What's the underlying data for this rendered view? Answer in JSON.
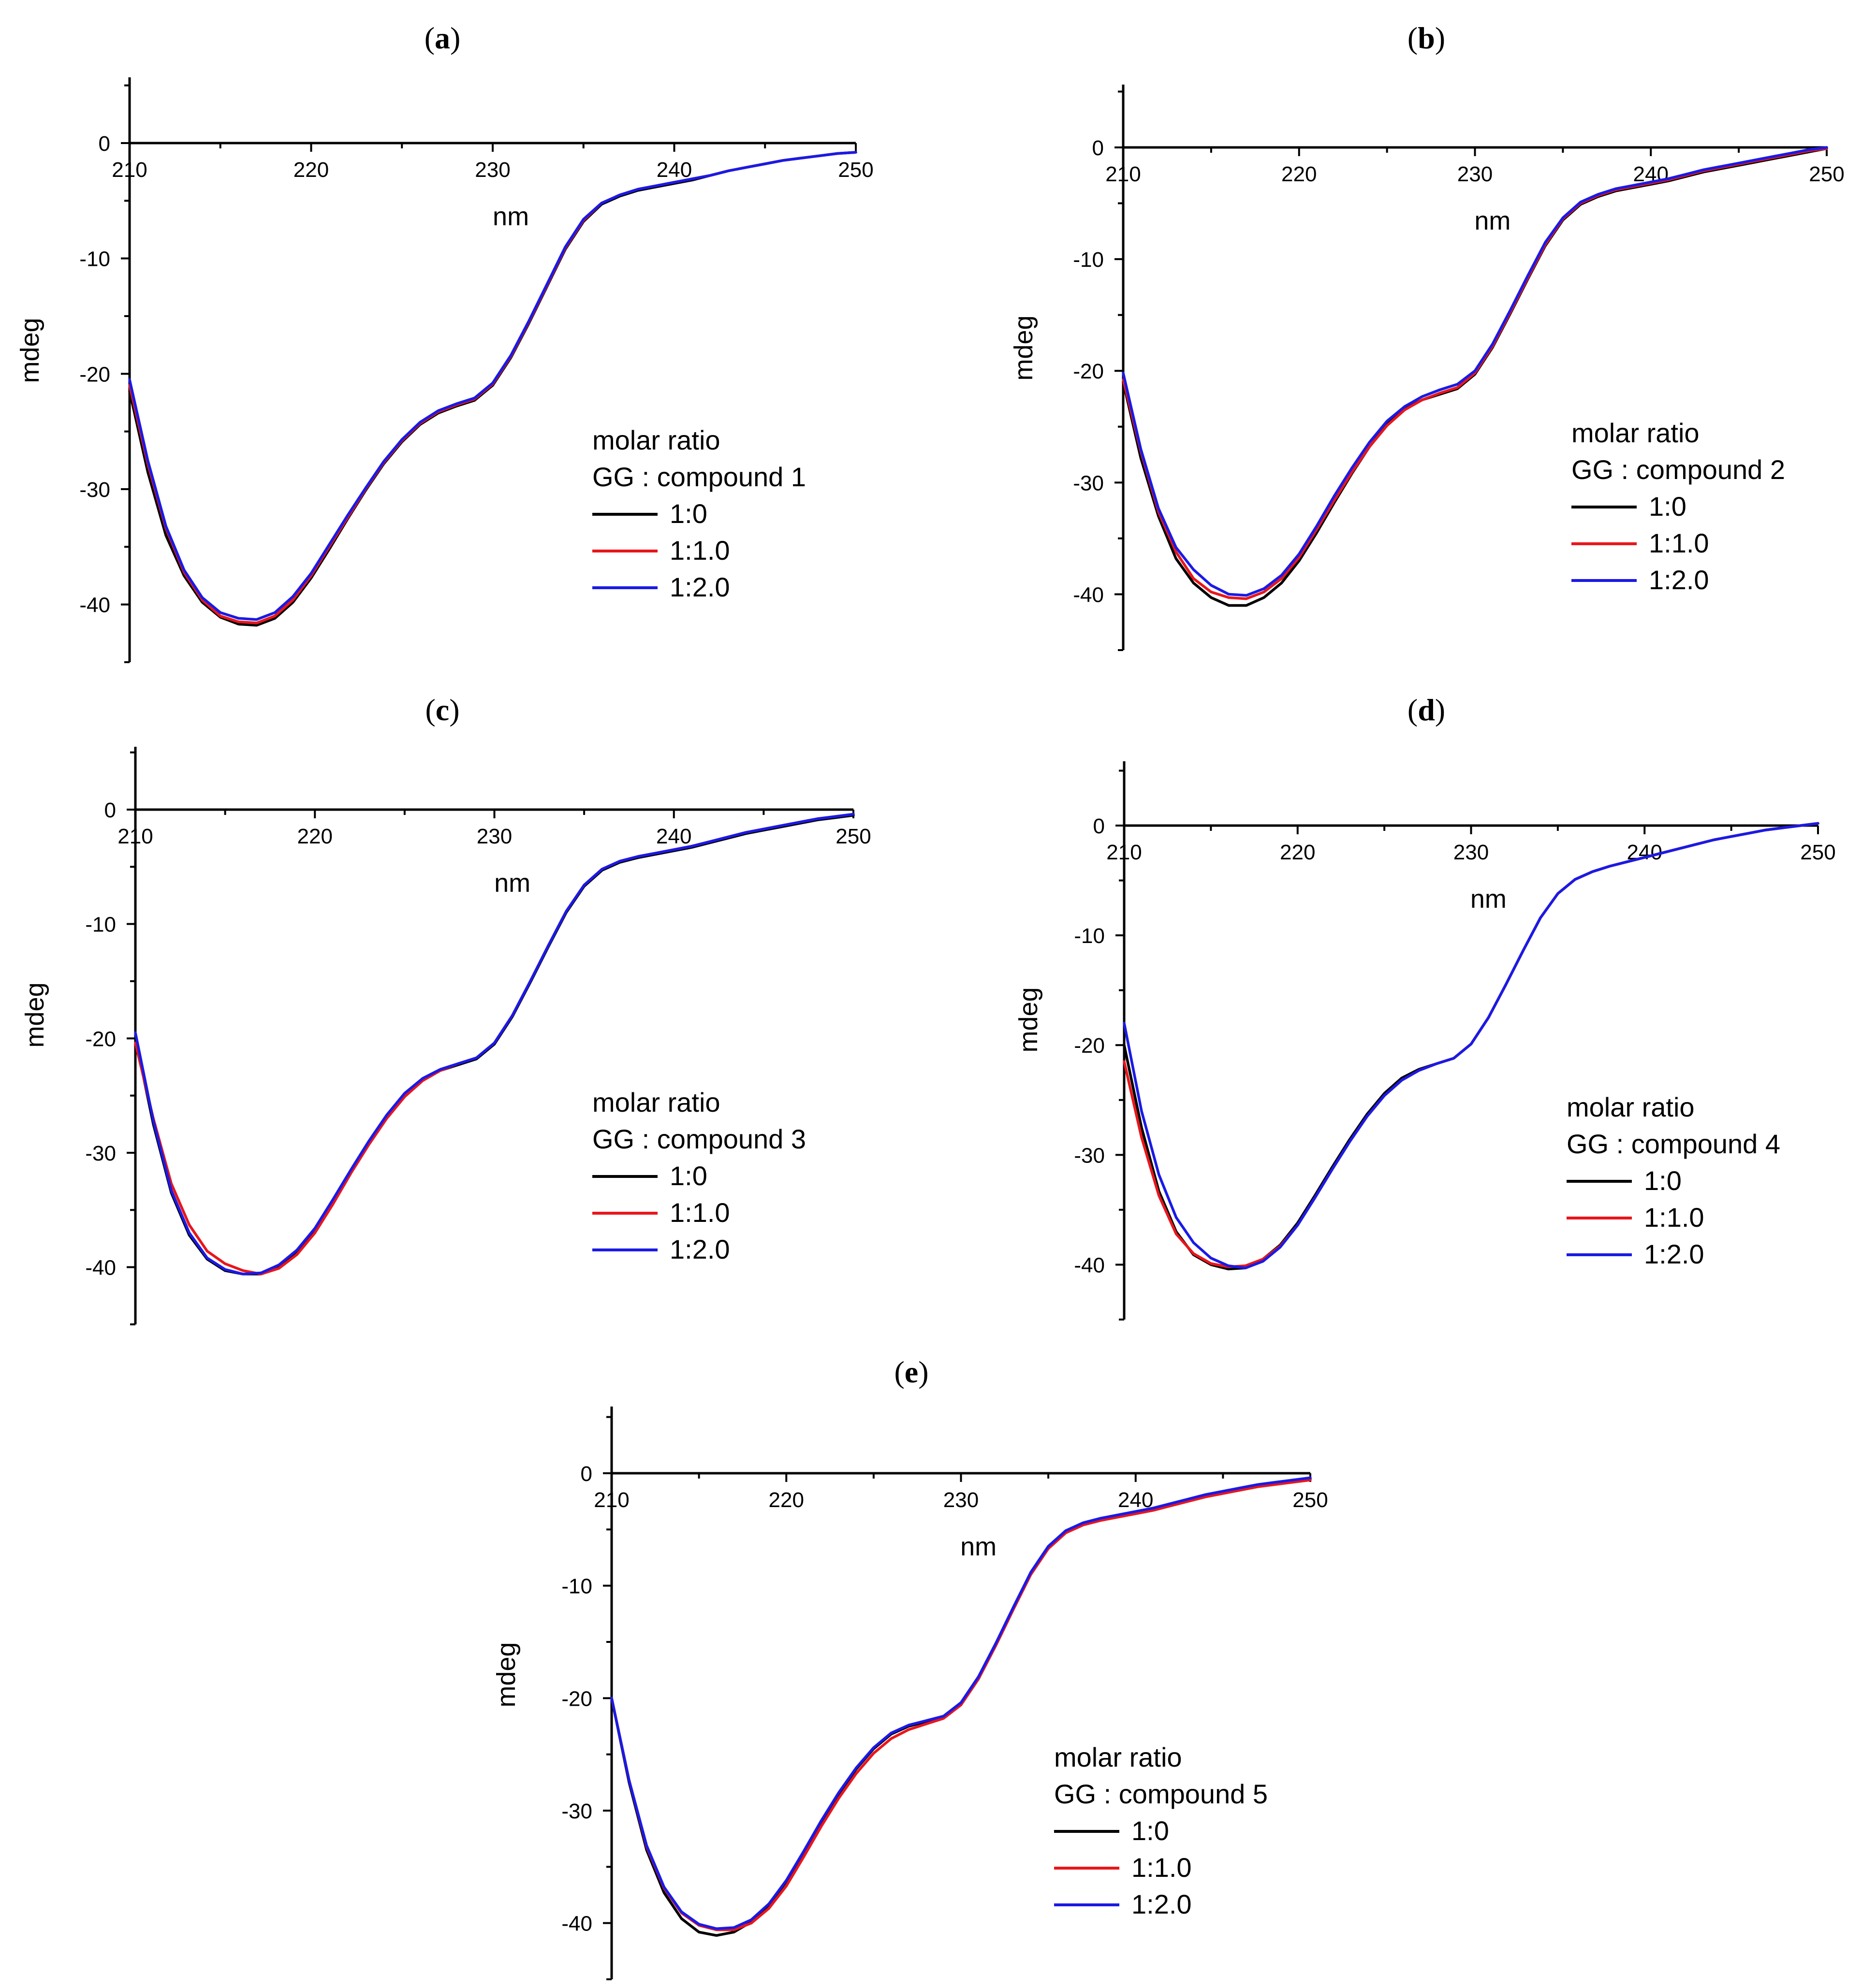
{
  "colors": {
    "black": "#000000",
    "red": "#e8161c",
    "blue": "#1a1ae6"
  },
  "chart_data": [
    {
      "type": "line",
      "panel_label": "a",
      "xlabel": "nm",
      "ylabel": "mdeg",
      "xlim": [
        210,
        250
      ],
      "ylim": [
        -45,
        6
      ],
      "xticks": [
        "210",
        "220",
        "230",
        "240",
        "250"
      ],
      "yticks": [
        "0",
        "-10",
        "-20",
        "-30",
        "-40"
      ],
      "legend_title_1": "molar ratio",
      "legend_title_2": "GG : compound 1",
      "x": [
        210,
        211,
        212,
        213,
        214,
        215,
        216,
        217,
        218,
        219,
        220,
        221,
        222,
        223,
        224,
        225,
        226,
        227,
        228,
        229,
        230,
        231,
        232,
        233,
        234,
        235,
        236,
        237,
        238,
        239,
        240,
        241,
        242,
        243,
        244,
        245,
        246,
        247,
        248,
        249,
        250
      ],
      "series": [
        {
          "name": "1:0",
          "color": "#000000",
          "values": [
            -21.5,
            -28.5,
            -34.0,
            -37.5,
            -39.8,
            -41.1,
            -41.7,
            -41.8,
            -41.2,
            -39.8,
            -37.7,
            -35.2,
            -32.6,
            -30.1,
            -27.8,
            -25.9,
            -24.4,
            -23.4,
            -22.8,
            -22.3,
            -21.0,
            -18.6,
            -15.6,
            -12.4,
            -9.2,
            -6.8,
            -5.3,
            -4.6,
            -4.1,
            -3.8,
            -3.5,
            -3.2,
            -2.8,
            -2.4,
            -2.1,
            -1.8,
            -1.5,
            -1.3,
            -1.1,
            -0.9,
            -0.8
          ]
        },
        {
          "name": "1:1.0",
          "color": "#e8161c",
          "values": [
            -21.0,
            -27.8,
            -33.4,
            -37.2,
            -39.6,
            -41.0,
            -41.5,
            -41.6,
            -41.0,
            -39.6,
            -37.5,
            -35.0,
            -32.5,
            -30.0,
            -27.7,
            -25.8,
            -24.3,
            -23.3,
            -22.7,
            -22.2,
            -20.9,
            -18.5,
            -15.5,
            -12.3,
            -9.1,
            -6.7,
            -5.2,
            -4.5,
            -4.0,
            -3.7,
            -3.4,
            -3.1,
            -2.8,
            -2.4,
            -2.1,
            -1.8,
            -1.5,
            -1.3,
            -1.1,
            -0.9,
            -0.8
          ]
        },
        {
          "name": "1:2.0",
          "color": "#1a1ae6",
          "values": [
            -20.5,
            -27.5,
            -33.2,
            -37.0,
            -39.4,
            -40.7,
            -41.2,
            -41.3,
            -40.7,
            -39.3,
            -37.3,
            -34.8,
            -32.3,
            -29.9,
            -27.6,
            -25.7,
            -24.2,
            -23.2,
            -22.6,
            -22.1,
            -20.8,
            -18.4,
            -15.4,
            -12.2,
            -9.0,
            -6.6,
            -5.2,
            -4.5,
            -4.0,
            -3.7,
            -3.4,
            -3.1,
            -2.8,
            -2.4,
            -2.1,
            -1.8,
            -1.5,
            -1.3,
            -1.1,
            -0.9,
            -0.8
          ]
        }
      ]
    },
    {
      "type": "line",
      "panel_label": "b",
      "xlabel": "nm",
      "ylabel": "mdeg",
      "xlim": [
        210,
        250
      ],
      "ylim": [
        -45,
        5.5
      ],
      "xticks": [
        "210",
        "220",
        "230",
        "240",
        "250"
      ],
      "yticks": [
        "0",
        "-10",
        "-20",
        "-30",
        "-40"
      ],
      "legend_title_1": "molar ratio",
      "legend_title_2": "GG : compound 2",
      "x": [
        210,
        211,
        212,
        213,
        214,
        215,
        216,
        217,
        218,
        219,
        220,
        221,
        222,
        223,
        224,
        225,
        226,
        227,
        228,
        229,
        230,
        231,
        232,
        233,
        234,
        235,
        236,
        237,
        238,
        239,
        240,
        241,
        242,
        243,
        244,
        245,
        246,
        247,
        248,
        249,
        250
      ],
      "series": [
        {
          "name": "1:0",
          "color": "#000000",
          "values": [
            -21.0,
            -27.8,
            -33.0,
            -36.8,
            -39.0,
            -40.3,
            -41.0,
            -41.0,
            -40.3,
            -39.0,
            -37.0,
            -34.5,
            -31.8,
            -29.2,
            -26.8,
            -24.8,
            -23.4,
            -22.6,
            -22.1,
            -21.6,
            -20.3,
            -17.9,
            -14.9,
            -11.8,
            -8.8,
            -6.5,
            -5.1,
            -4.4,
            -3.9,
            -3.6,
            -3.3,
            -3.0,
            -2.6,
            -2.2,
            -1.9,
            -1.6,
            -1.3,
            -1.0,
            -0.7,
            -0.4,
            -0.1
          ]
        },
        {
          "name": "1:1.0",
          "color": "#e8161c",
          "values": [
            -20.8,
            -27.2,
            -32.6,
            -36.2,
            -38.6,
            -39.8,
            -40.3,
            -40.4,
            -39.8,
            -38.6,
            -36.7,
            -34.2,
            -31.6,
            -29.1,
            -26.8,
            -24.9,
            -23.5,
            -22.6,
            -22.0,
            -21.5,
            -20.2,
            -17.8,
            -14.8,
            -11.7,
            -8.7,
            -6.4,
            -5.0,
            -4.3,
            -3.8,
            -3.5,
            -3.2,
            -2.9,
            -2.5,
            -2.1,
            -1.8,
            -1.5,
            -1.2,
            -0.9,
            -0.6,
            -0.3,
            -0.1
          ]
        },
        {
          "name": "1:2.0",
          "color": "#1a1ae6",
          "values": [
            -20.2,
            -27.0,
            -32.3,
            -35.8,
            -37.8,
            -39.2,
            -40.0,
            -40.1,
            -39.5,
            -38.3,
            -36.4,
            -33.9,
            -31.2,
            -28.7,
            -26.4,
            -24.5,
            -23.2,
            -22.3,
            -21.7,
            -21.2,
            -20.0,
            -17.6,
            -14.6,
            -11.5,
            -8.5,
            -6.3,
            -4.9,
            -4.2,
            -3.7,
            -3.4,
            -3.1,
            -2.8,
            -2.4,
            -2.0,
            -1.7,
            -1.4,
            -1.1,
            -0.8,
            -0.5,
            -0.2,
            0.0
          ]
        }
      ]
    },
    {
      "type": "line",
      "panel_label": "c",
      "xlabel": "nm",
      "ylabel": "mdeg",
      "xlim": [
        210,
        250
      ],
      "ylim": [
        -45,
        5.5
      ],
      "xticks": [
        "210",
        "220",
        "230",
        "240",
        "250"
      ],
      "yticks": [
        "0",
        "-10",
        "-20",
        "-30",
        "-40"
      ],
      "legend_title_1": "molar ratio",
      "legend_title_2": "GG : compound 3",
      "x": [
        210,
        211,
        212,
        213,
        214,
        215,
        216,
        217,
        218,
        219,
        220,
        221,
        222,
        223,
        224,
        225,
        226,
        227,
        228,
        229,
        230,
        231,
        232,
        233,
        234,
        235,
        236,
        237,
        238,
        239,
        240,
        241,
        242,
        243,
        244,
        245,
        246,
        247,
        248,
        249,
        250
      ],
      "series": [
        {
          "name": "1:0",
          "color": "#000000",
          "values": [
            -20.0,
            -27.5,
            -33.5,
            -37.2,
            -39.3,
            -40.3,
            -40.6,
            -40.6,
            -39.9,
            -38.6,
            -36.7,
            -34.2,
            -31.6,
            -29.1,
            -26.8,
            -24.9,
            -23.6,
            -22.8,
            -22.3,
            -21.8,
            -20.5,
            -18.1,
            -15.1,
            -12.0,
            -9.0,
            -6.7,
            -5.3,
            -4.6,
            -4.2,
            -3.9,
            -3.6,
            -3.3,
            -2.9,
            -2.5,
            -2.1,
            -1.8,
            -1.5,
            -1.2,
            -0.9,
            -0.7,
            -0.5
          ]
        },
        {
          "name": "1:1.0",
          "color": "#e8161c",
          "values": [
            -20.4,
            -27.0,
            -32.7,
            -36.3,
            -38.6,
            -39.7,
            -40.3,
            -40.6,
            -40.1,
            -38.9,
            -37.0,
            -34.5,
            -31.8,
            -29.3,
            -27.0,
            -25.1,
            -23.7,
            -22.8,
            -22.2,
            -21.7,
            -20.4,
            -18.0,
            -15.0,
            -11.9,
            -8.9,
            -6.6,
            -5.2,
            -4.5,
            -4.1,
            -3.8,
            -3.5,
            -3.2,
            -2.8,
            -2.4,
            -2.0,
            -1.7,
            -1.4,
            -1.1,
            -0.8,
            -0.6,
            -0.4
          ]
        },
        {
          "name": "1:2.0",
          "color": "#1a1ae6",
          "values": [
            -19.5,
            -27.2,
            -33.3,
            -37.0,
            -39.2,
            -40.2,
            -40.6,
            -40.5,
            -39.8,
            -38.5,
            -36.6,
            -34.1,
            -31.5,
            -29.0,
            -26.7,
            -24.8,
            -23.5,
            -22.7,
            -22.2,
            -21.7,
            -20.4,
            -18.0,
            -15.0,
            -11.9,
            -8.9,
            -6.6,
            -5.2,
            -4.5,
            -4.1,
            -3.8,
            -3.5,
            -3.2,
            -2.8,
            -2.4,
            -2.0,
            -1.7,
            -1.4,
            -1.1,
            -0.8,
            -0.6,
            -0.4
          ]
        }
      ]
    },
    {
      "type": "line",
      "panel_label": "d",
      "xlabel": "nm",
      "ylabel": "mdeg",
      "xlim": [
        210,
        250
      ],
      "ylim": [
        -45,
        5.5
      ],
      "xticks": [
        "210",
        "220",
        "230",
        "240",
        "250"
      ],
      "yticks": [
        "0",
        "-10",
        "-20",
        "-30",
        "-40"
      ],
      "legend_title_1": "molar ratio",
      "legend_title_2": "GG : compound 4",
      "x": [
        210,
        211,
        212,
        213,
        214,
        215,
        216,
        217,
        218,
        219,
        220,
        221,
        222,
        223,
        224,
        225,
        226,
        227,
        228,
        229,
        230,
        231,
        232,
        233,
        234,
        235,
        236,
        237,
        238,
        239,
        240,
        241,
        242,
        243,
        244,
        245,
        246,
        247,
        248,
        249,
        250
      ],
      "series": [
        {
          "name": "1:0",
          "color": "#000000",
          "values": [
            -20.0,
            -27.5,
            -33.3,
            -37.0,
            -39.1,
            -40.0,
            -40.4,
            -40.3,
            -39.5,
            -38.2,
            -36.2,
            -33.7,
            -31.1,
            -28.6,
            -26.3,
            -24.4,
            -23.0,
            -22.2,
            -21.7,
            -21.2,
            -19.9,
            -17.5,
            -14.5,
            -11.4,
            -8.4,
            -6.2,
            -4.9,
            -4.2,
            -3.7,
            -3.3,
            -2.9,
            -2.5,
            -2.1,
            -1.7,
            -1.3,
            -1.0,
            -0.7,
            -0.4,
            -0.2,
            0.0,
            0.2
          ]
        },
        {
          "name": "1:1.0",
          "color": "#e8161c",
          "values": [
            -21.5,
            -28.4,
            -33.7,
            -37.2,
            -39.0,
            -39.9,
            -40.2,
            -40.1,
            -39.5,
            -38.3,
            -36.4,
            -33.9,
            -31.3,
            -28.8,
            -26.5,
            -24.6,
            -23.2,
            -22.3,
            -21.7,
            -21.2,
            -19.9,
            -17.5,
            -14.5,
            -11.4,
            -8.4,
            -6.2,
            -4.9,
            -4.2,
            -3.7,
            -3.3,
            -2.9,
            -2.5,
            -2.1,
            -1.7,
            -1.3,
            -1.0,
            -0.7,
            -0.4,
            -0.2,
            0.0,
            0.2
          ]
        },
        {
          "name": "1:2.0",
          "color": "#1a1ae6",
          "values": [
            -18.0,
            -26.0,
            -31.8,
            -35.7,
            -38.0,
            -39.4,
            -40.1,
            -40.3,
            -39.7,
            -38.4,
            -36.4,
            -33.9,
            -31.3,
            -28.8,
            -26.5,
            -24.6,
            -23.2,
            -22.3,
            -21.7,
            -21.2,
            -19.9,
            -17.5,
            -14.5,
            -11.4,
            -8.4,
            -6.2,
            -4.9,
            -4.2,
            -3.7,
            -3.3,
            -2.9,
            -2.5,
            -2.1,
            -1.7,
            -1.3,
            -1.0,
            -0.7,
            -0.4,
            -0.2,
            0.0,
            0.2
          ]
        }
      ]
    },
    {
      "type": "line",
      "panel_label": "e",
      "xlabel": "nm",
      "ylabel": "mdeg",
      "xlim": [
        210,
        250
      ],
      "ylim": [
        -45,
        6
      ],
      "xticks": [
        "210",
        "220",
        "230",
        "240",
        "250"
      ],
      "yticks": [
        "0",
        "-10",
        "-20",
        "-30",
        "-40"
      ],
      "legend_title_1": "molar ratio",
      "legend_title_2": "GG : compound 5",
      "x": [
        210,
        211,
        212,
        213,
        214,
        215,
        216,
        217,
        218,
        219,
        220,
        221,
        222,
        223,
        224,
        225,
        226,
        227,
        228,
        229,
        230,
        231,
        232,
        233,
        234,
        235,
        236,
        237,
        238,
        239,
        240,
        241,
        242,
        243,
        244,
        245,
        246,
        247,
        248,
        249,
        250
      ],
      "series": [
        {
          "name": "1:0",
          "color": "#000000",
          "values": [
            -20.0,
            -27.5,
            -33.5,
            -37.3,
            -39.6,
            -40.8,
            -41.1,
            -40.8,
            -39.9,
            -38.4,
            -36.3,
            -33.7,
            -31.0,
            -28.5,
            -26.3,
            -24.5,
            -23.2,
            -22.5,
            -22.1,
            -21.7,
            -20.5,
            -18.2,
            -15.2,
            -12.0,
            -8.9,
            -6.6,
            -5.2,
            -4.5,
            -4.1,
            -3.8,
            -3.5,
            -3.2,
            -2.8,
            -2.4,
            -2.0,
            -1.7,
            -1.4,
            -1.1,
            -0.9,
            -0.7,
            -0.5
          ]
        },
        {
          "name": "1:1.0",
          "color": "#e8161c",
          "values": [
            -20.0,
            -27.3,
            -33.2,
            -36.9,
            -39.1,
            -40.2,
            -40.6,
            -40.6,
            -40.0,
            -38.7,
            -36.7,
            -34.1,
            -31.4,
            -28.9,
            -26.7,
            -24.9,
            -23.6,
            -22.8,
            -22.3,
            -21.8,
            -20.6,
            -18.3,
            -15.3,
            -12.1,
            -9.0,
            -6.7,
            -5.3,
            -4.6,
            -4.2,
            -3.9,
            -3.6,
            -3.3,
            -2.9,
            -2.5,
            -2.1,
            -1.8,
            -1.5,
            -1.2,
            -1.0,
            -0.8,
            -0.6
          ]
        },
        {
          "name": "1:2.0",
          "color": "#1a1ae6",
          "values": [
            -20.0,
            -27.3,
            -33.1,
            -36.8,
            -39.0,
            -40.1,
            -40.5,
            -40.4,
            -39.7,
            -38.3,
            -36.2,
            -33.6,
            -30.9,
            -28.4,
            -26.2,
            -24.4,
            -23.1,
            -22.4,
            -22.0,
            -21.6,
            -20.4,
            -18.1,
            -15.1,
            -11.9,
            -8.8,
            -6.5,
            -5.1,
            -4.4,
            -4.0,
            -3.7,
            -3.4,
            -3.1,
            -2.7,
            -2.3,
            -1.9,
            -1.6,
            -1.3,
            -1.0,
            -0.8,
            -0.6,
            -0.4
          ]
        }
      ]
    }
  ]
}
